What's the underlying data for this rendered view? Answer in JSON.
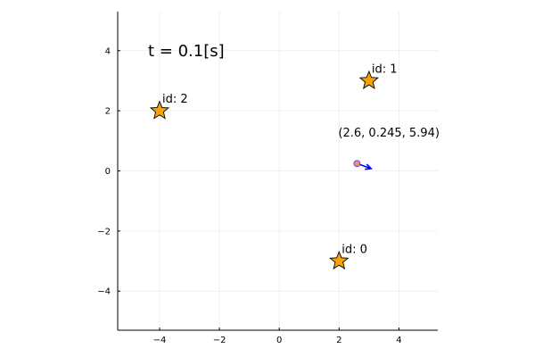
{
  "chart_data": {
    "type": "scatter",
    "title": "t = 0.1[s]",
    "xlabel": "",
    "ylabel": "",
    "xlim": [
      -5.4,
      5.3
    ],
    "ylim": [
      -5.3,
      5.3
    ],
    "xticks": [
      -4,
      -2,
      0,
      2,
      4
    ],
    "yticks": [
      -4,
      -2,
      0,
      2,
      4
    ],
    "xtick_labels": [
      "−4",
      "−2",
      "0",
      "2",
      "4"
    ],
    "ytick_labels": [
      "−4",
      "−2",
      "0",
      "2",
      "4"
    ],
    "grid": true,
    "legend": "none",
    "landmarks": [
      {
        "label": "id: 0",
        "x": 2,
        "y": -3
      },
      {
        "label": "id: 1",
        "x": 3,
        "y": 3
      },
      {
        "label": "id: 2",
        "x": -4,
        "y": 2
      }
    ],
    "robot": {
      "label": "(2.6, 0.245, 5.94)",
      "x": 2.6,
      "y": 0.245,
      "theta": 5.94
    },
    "colors": {
      "landmark": "#f5a10a",
      "robot_marker": "#f08a8a",
      "robot_heading": "#0000ff",
      "axis": "#000000",
      "grid": "#ebebeb"
    }
  }
}
